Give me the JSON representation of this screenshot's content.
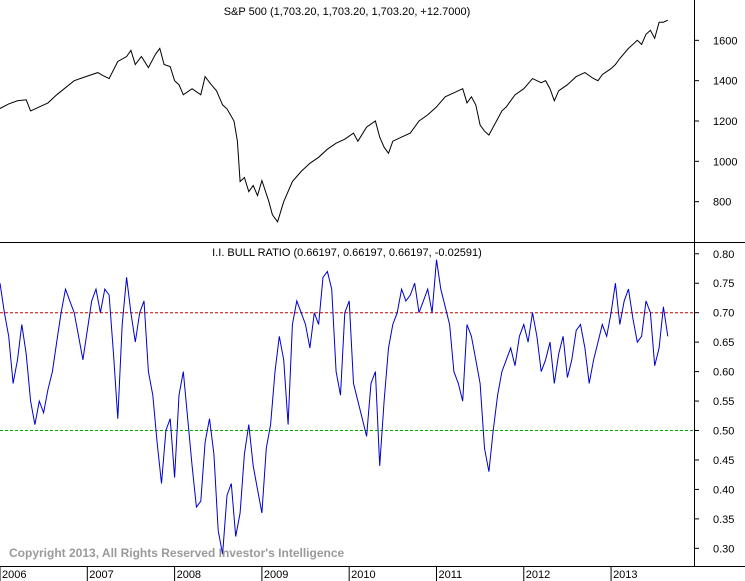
{
  "copyright": "Copyright 2013, All Rights Reserved  Investor's Intelligence",
  "x_labels": [
    "2006",
    "2007",
    "2008",
    "2009",
    "2010",
    "2011",
    "2012",
    "2013"
  ],
  "chart_data": [
    {
      "type": "line",
      "title": "S&P 500 (1,703.20, 1,703.20, 1,703.20, +12.7000)",
      "xlim": [
        2006.0,
        2013.95
      ],
      "ylim": [
        600,
        1800
      ],
      "yticks": [
        800,
        1000,
        1200,
        1400,
        1600
      ],
      "color": "#000000",
      "series": [
        {
          "x": [
            2006.0,
            2006.1,
            2006.2,
            2006.3,
            2006.35,
            2006.45,
            2006.55,
            2006.65,
            2006.75,
            2006.85,
            2006.95,
            2007.05,
            2007.12,
            2007.18,
            2007.25,
            2007.35,
            2007.45,
            2007.5,
            2007.55,
            2007.62,
            2007.7,
            2007.78,
            2007.83,
            2007.88,
            2007.95,
            2008.0,
            2008.05,
            2008.1,
            2008.2,
            2008.3,
            2008.35,
            2008.42,
            2008.48,
            2008.55,
            2008.6,
            2008.68,
            2008.72,
            2008.75,
            2008.8,
            2008.85,
            2008.9,
            2008.95,
            2009.0,
            2009.08,
            2009.12,
            2009.18,
            2009.25,
            2009.35,
            2009.45,
            2009.55,
            2009.65,
            2009.75,
            2009.85,
            2009.95,
            2010.05,
            2010.1,
            2010.2,
            2010.3,
            2010.35,
            2010.4,
            2010.45,
            2010.5,
            2010.6,
            2010.7,
            2010.8,
            2010.9,
            2011.0,
            2011.1,
            2011.2,
            2011.3,
            2011.35,
            2011.4,
            2011.45,
            2011.5,
            2011.55,
            2011.6,
            2011.65,
            2011.7,
            2011.75,
            2011.8,
            2011.9,
            2012.0,
            2012.1,
            2012.2,
            2012.25,
            2012.3,
            2012.35,
            2012.4,
            2012.5,
            2012.6,
            2012.7,
            2012.8,
            2012.85,
            2012.9,
            2013.0,
            2013.05,
            2013.1,
            2013.2,
            2013.3,
            2013.35,
            2013.4,
            2013.45,
            2013.5,
            2013.55,
            2013.6,
            2013.65
          ],
          "y": [
            1262,
            1285,
            1300,
            1305,
            1250,
            1270,
            1290,
            1330,
            1365,
            1400,
            1415,
            1430,
            1440,
            1425,
            1410,
            1495,
            1520,
            1550,
            1480,
            1520,
            1465,
            1530,
            1560,
            1480,
            1470,
            1400,
            1380,
            1330,
            1360,
            1330,
            1420,
            1380,
            1350,
            1280,
            1260,
            1200,
            1100,
            900,
            920,
            850,
            880,
            830,
            905,
            800,
            735,
            700,
            800,
            900,
            950,
            990,
            1020,
            1060,
            1090,
            1110,
            1140,
            1100,
            1170,
            1200,
            1120,
            1070,
            1040,
            1100,
            1120,
            1140,
            1200,
            1230,
            1270,
            1320,
            1340,
            1360,
            1290,
            1320,
            1280,
            1180,
            1150,
            1130,
            1170,
            1210,
            1250,
            1270,
            1330,
            1360,
            1410,
            1390,
            1400,
            1360,
            1300,
            1350,
            1380,
            1420,
            1440,
            1410,
            1400,
            1430,
            1460,
            1480,
            1510,
            1560,
            1600,
            1580,
            1630,
            1650,
            1610,
            1690,
            1690,
            1700
          ]
        }
      ]
    },
    {
      "type": "line",
      "title": "I.I. BULL RATIO (0.66197, 0.66197, 0.66197, -0.02591)",
      "xlim": [
        2006.0,
        2013.95
      ],
      "ylim": [
        0.27,
        0.82
      ],
      "yticks": [
        0.3,
        0.35,
        0.4,
        0.45,
        0.5,
        0.55,
        0.6,
        0.65,
        0.7,
        0.75,
        0.8
      ],
      "color": "#0000cc",
      "reference_lines": [
        {
          "y": 0.7,
          "color": "#cc0000",
          "style": "dashed"
        },
        {
          "y": 0.5,
          "color": "#00aa00",
          "style": "dashed"
        }
      ],
      "series": [
        {
          "x": [
            2006.0,
            2006.05,
            2006.1,
            2006.15,
            2006.2,
            2006.25,
            2006.3,
            2006.35,
            2006.4,
            2006.45,
            2006.5,
            2006.55,
            2006.6,
            2006.65,
            2006.7,
            2006.75,
            2006.8,
            2006.85,
            2006.9,
            2006.95,
            2007.0,
            2007.05,
            2007.1,
            2007.15,
            2007.2,
            2007.25,
            2007.3,
            2007.35,
            2007.4,
            2007.45,
            2007.5,
            2007.55,
            2007.6,
            2007.65,
            2007.7,
            2007.75,
            2007.8,
            2007.85,
            2007.9,
            2007.95,
            2008.0,
            2008.05,
            2008.1,
            2008.15,
            2008.2,
            2008.25,
            2008.3,
            2008.35,
            2008.4,
            2008.45,
            2008.5,
            2008.55,
            2008.6,
            2008.65,
            2008.7,
            2008.75,
            2008.8,
            2008.85,
            2008.9,
            2008.95,
            2009.0,
            2009.05,
            2009.1,
            2009.15,
            2009.2,
            2009.25,
            2009.3,
            2009.35,
            2009.4,
            2009.45,
            2009.5,
            2009.55,
            2009.6,
            2009.65,
            2009.7,
            2009.75,
            2009.8,
            2009.85,
            2009.9,
            2009.95,
            2010.0,
            2010.05,
            2010.1,
            2010.15,
            2010.2,
            2010.25,
            2010.3,
            2010.35,
            2010.4,
            2010.45,
            2010.5,
            2010.55,
            2010.6,
            2010.65,
            2010.7,
            2010.75,
            2010.8,
            2010.85,
            2010.9,
            2010.95,
            2011.0,
            2011.05,
            2011.1,
            2011.15,
            2011.2,
            2011.25,
            2011.3,
            2011.35,
            2011.4,
            2011.45,
            2011.5,
            2011.55,
            2011.6,
            2011.65,
            2011.7,
            2011.75,
            2011.8,
            2011.85,
            2011.9,
            2011.95,
            2012.0,
            2012.05,
            2012.1,
            2012.15,
            2012.2,
            2012.25,
            2012.3,
            2012.35,
            2012.4,
            2012.45,
            2012.5,
            2012.55,
            2012.6,
            2012.65,
            2012.7,
            2012.75,
            2012.8,
            2012.85,
            2012.9,
            2012.95,
            2013.0,
            2013.05,
            2013.1,
            2013.15,
            2013.2,
            2013.25,
            2013.3,
            2013.35,
            2013.4,
            2013.45,
            2013.5,
            2013.55,
            2013.6,
            2013.65
          ],
          "y": [
            0.75,
            0.7,
            0.66,
            0.58,
            0.62,
            0.68,
            0.63,
            0.55,
            0.51,
            0.55,
            0.53,
            0.57,
            0.6,
            0.65,
            0.7,
            0.74,
            0.72,
            0.7,
            0.66,
            0.62,
            0.67,
            0.72,
            0.74,
            0.7,
            0.74,
            0.73,
            0.63,
            0.52,
            0.68,
            0.76,
            0.7,
            0.65,
            0.7,
            0.72,
            0.6,
            0.56,
            0.48,
            0.41,
            0.5,
            0.52,
            0.42,
            0.56,
            0.6,
            0.52,
            0.44,
            0.37,
            0.38,
            0.48,
            0.52,
            0.46,
            0.33,
            0.29,
            0.39,
            0.41,
            0.32,
            0.36,
            0.46,
            0.51,
            0.44,
            0.4,
            0.36,
            0.47,
            0.51,
            0.6,
            0.66,
            0.62,
            0.51,
            0.68,
            0.72,
            0.7,
            0.68,
            0.64,
            0.7,
            0.68,
            0.76,
            0.77,
            0.74,
            0.6,
            0.56,
            0.7,
            0.72,
            0.58,
            0.55,
            0.52,
            0.49,
            0.58,
            0.6,
            0.44,
            0.55,
            0.64,
            0.68,
            0.7,
            0.74,
            0.72,
            0.73,
            0.75,
            0.7,
            0.72,
            0.74,
            0.7,
            0.79,
            0.74,
            0.71,
            0.68,
            0.6,
            0.58,
            0.55,
            0.68,
            0.66,
            0.62,
            0.58,
            0.47,
            0.43,
            0.5,
            0.56,
            0.6,
            0.62,
            0.64,
            0.61,
            0.66,
            0.68,
            0.65,
            0.7,
            0.66,
            0.6,
            0.62,
            0.65,
            0.58,
            0.63,
            0.66,
            0.59,
            0.62,
            0.67,
            0.68,
            0.64,
            0.58,
            0.62,
            0.65,
            0.68,
            0.66,
            0.7,
            0.75,
            0.68,
            0.72,
            0.74,
            0.69,
            0.65,
            0.66,
            0.72,
            0.7,
            0.61,
            0.64,
            0.71,
            0.66
          ]
        }
      ]
    }
  ]
}
